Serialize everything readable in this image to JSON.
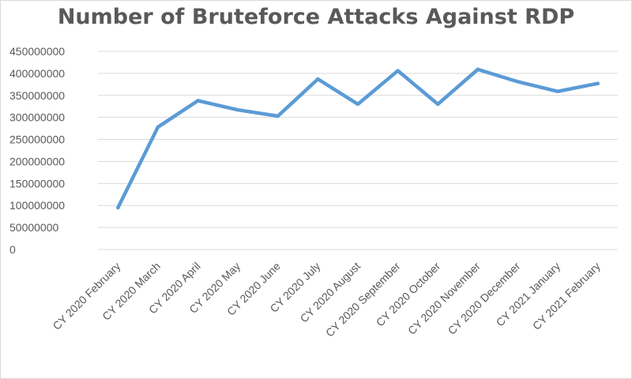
{
  "chart_data": {
    "type": "line",
    "title": "Number of Bruteforce Attacks Against RDP",
    "xlabel": "",
    "ylabel": "",
    "ylim": [
      0,
      450000000
    ],
    "y_ticks": [
      "0",
      "50000000",
      "100000000",
      "150000000",
      "200000000",
      "250000000",
      "300000000",
      "350000000",
      "400000000",
      "450000000"
    ],
    "grid": true,
    "legend": "none",
    "categories": [
      "CY 2020 February",
      "CY 2020 March",
      "CY 2020 April",
      "CY 2020 May",
      "CY 2020 June",
      "CY 2020 July",
      "CY 2020 August",
      "CY 2020 September",
      "CY 2020 October",
      "CY 2020 November",
      "CY 2020 December",
      "CY 2021 January",
      "CY 2021 February"
    ],
    "series": [
      {
        "values": [
          95000000,
          278000000,
          338000000,
          317000000,
          303000000,
          387000000,
          330000000,
          406000000,
          330000000,
          409000000,
          381000000,
          359000000,
          377000000
        ],
        "color": "#5b9bd5"
      }
    ]
  }
}
